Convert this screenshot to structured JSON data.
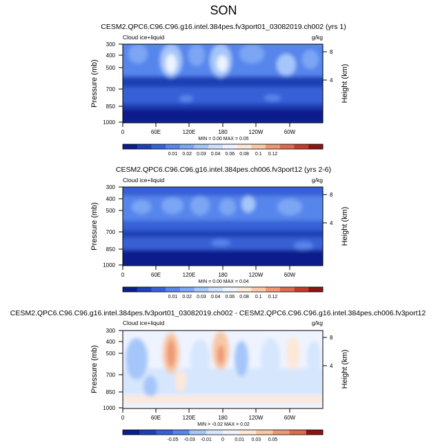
{
  "figure_title": "SON",
  "chart_data": [
    {
      "type": "heatmap",
      "title": "CESM2.QPC6.C96.C96.g16.intel.384pes.fv3port01_03082019.ch002 (yrs 1)",
      "variable_label": "Cloud ice+liquid",
      "units_label": "g/kg",
      "ylabel": "Pressure (mb)",
      "ylabel_right": "Height (km)",
      "xlabel": "",
      "x_ticks": [
        "0",
        "60E",
        "120E",
        "180",
        "120W",
        "60W"
      ],
      "x_range_deg": [
        0,
        360
      ],
      "y_ticks": [
        "300",
        "400",
        "500",
        "700",
        "850",
        "1000"
      ],
      "y_range_mb": [
        300,
        1000
      ],
      "y_right_ticks": [
        "8",
        "4"
      ],
      "min": "0.00",
      "max": "0.05",
      "minmax_text": "MIN =   0.00  MAX =   0.05",
      "colorbar": {
        "labels": [
          "0.01",
          "0.02",
          "0.03",
          "0.04",
          "0.06",
          "0.08",
          "0.1",
          "0.12"
        ],
        "colors": [
          "#0a1e8c",
          "#1f3fb4",
          "#3760d6",
          "#5685ec",
          "#7ba6f4",
          "#a5c6fa",
          "#cfe0fd",
          "#eef3ff",
          "#fde8d8",
          "#f8c7a6",
          "#ee9873",
          "#dc6a4c",
          "#c03b2c",
          "#8c1414"
        ]
      },
      "field_description": "Values mostly 0.01-0.04; local maxima near 90E and 170E around 400-500 mb; low values near 700-1000 mb"
    },
    {
      "type": "heatmap",
      "title": "CESM2.QPC6.C96.C96.g16.intel.384pes.ch006.fv3port12 (yrs 2-6)",
      "variable_label": "Cloud ice+liquid",
      "units_label": "g/kg",
      "ylabel": "Pressure (mb)",
      "ylabel_right": "Height (km)",
      "xlabel": "",
      "x_ticks": [
        "0",
        "60E",
        "120E",
        "180",
        "120W",
        "60W"
      ],
      "x_range_deg": [
        0,
        360
      ],
      "y_ticks": [
        "300",
        "400",
        "500",
        "700",
        "850",
        "1000"
      ],
      "y_range_mb": [
        300,
        1000
      ],
      "y_right_ticks": [
        "8",
        "4"
      ],
      "min": "0.00",
      "max": "0.04",
      "minmax_text": "MIN =   0.00  MAX =   0.04",
      "colorbar": {
        "labels": [
          "0.01",
          "0.02",
          "0.03",
          "0.04",
          "0.06",
          "0.08",
          "0.1",
          "0.12"
        ],
        "colors": [
          "#0a1e8c",
          "#1f3fb4",
          "#3760d6",
          "#5685ec",
          "#7ba6f4",
          "#a5c6fa",
          "#cfe0fd",
          "#eef3ff",
          "#fde8d8",
          "#f8c7a6",
          "#ee9873",
          "#dc6a4c",
          "#c03b2c",
          "#8c1414"
        ]
      },
      "field_description": "Zonally more uniform field with values 0.01-0.04; maxima 400-550 mb"
    },
    {
      "type": "heatmap",
      "title": "CESM2.QPC6.C96.C96.g16.intel.384pes.fv3port01_03082019.ch002 - CESM2.QPC6.C96.C96.g16.intel.384pes.ch006.fv3port12",
      "variable_label": "Cloud ice+liquid",
      "units_label": "g/kg",
      "ylabel": "Pressure (mb)",
      "ylabel_right": "Height (km)",
      "xlabel": "",
      "x_ticks": [
        "0",
        "60E",
        "120E",
        "180",
        "120W",
        "60W"
      ],
      "x_range_deg": [
        0,
        360
      ],
      "y_ticks": [
        "300",
        "400",
        "500",
        "700",
        "850",
        "1000"
      ],
      "y_range_mb": [
        300,
        1000
      ],
      "y_right_ticks": [
        "8",
        "4"
      ],
      "min": "-0.02",
      "max": "0.02",
      "minmax_text": "MIN =  -0.02  MAX =   0.02",
      "colorbar": {
        "labels": [
          "-0.05",
          "-0.03",
          "-0.01",
          "0",
          "0.01",
          "0.03",
          "0.05"
        ],
        "colors": [
          "#0a1e8c",
          "#1f3fb4",
          "#3760d6",
          "#5685ec",
          "#a5c6fa",
          "#d6e6fc",
          "#eef3ff",
          "#fde8d8",
          "#f8c7a6",
          "#ee9873",
          "#dc6a4c",
          "#8c1414"
        ]
      },
      "field_description": "Differences near zero; positive (orange) near 75E and 170E at 400-600 mb; weak negative elsewhere"
    }
  ]
}
